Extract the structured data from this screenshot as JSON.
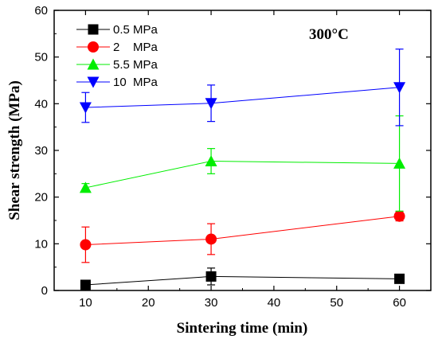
{
  "chart_data": {
    "type": "line",
    "xlabel": "Sintering time (min)",
    "ylabel": "Shear strength (MPa)",
    "annotation": "300°C",
    "xlim": [
      5,
      65
    ],
    "ylim": [
      0,
      60
    ],
    "xticks": [
      10,
      20,
      30,
      40,
      50,
      60
    ],
    "yticks": [
      0,
      10,
      20,
      30,
      40,
      50,
      60
    ],
    "legend_position": "top-left",
    "grid": false,
    "x": [
      10,
      30,
      60
    ],
    "series": [
      {
        "name": "0.5 MPa",
        "color": "#000000",
        "marker": "square",
        "values": [
          1.2,
          3.0,
          2.5
        ],
        "errors": [
          0.4,
          1.8,
          0.6
        ]
      },
      {
        "name": "2    MPa",
        "color": "#ff0000",
        "marker": "circle",
        "values": [
          9.8,
          11.0,
          15.9
        ],
        "errors": [
          3.8,
          3.3,
          1.0
        ]
      },
      {
        "name": "5.5 MPa",
        "color": "#00ee00",
        "marker": "triangle-up",
        "values": [
          22.0,
          27.7,
          27.2
        ],
        "errors": [
          0.9,
          2.7,
          10.2
        ]
      },
      {
        "name": "10  MPa",
        "color": "#0000ff",
        "marker": "triangle-down",
        "values": [
          39.2,
          40.1,
          43.5
        ],
        "errors": [
          3.2,
          3.9,
          8.2
        ]
      }
    ]
  }
}
